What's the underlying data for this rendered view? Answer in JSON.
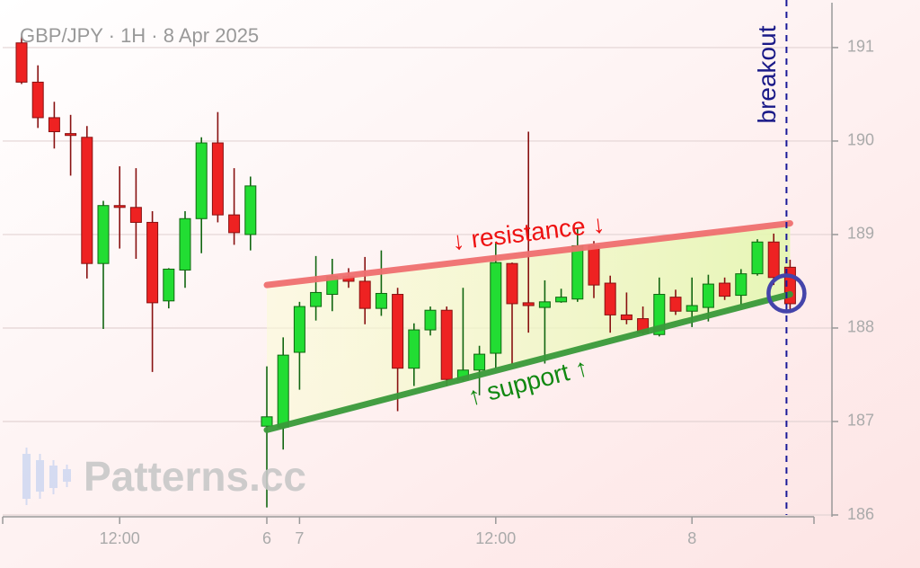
{
  "chart_data": {
    "type": "candlestick",
    "title": "GBP/JPY · 1H · 8 Apr 2025",
    "watermark": "Patterns.cc",
    "categories": [
      null,
      null,
      null,
      null,
      null,
      null,
      "12:00",
      null,
      null,
      null,
      null,
      null,
      null,
      null,
      null,
      "6",
      null,
      "7",
      null,
      null,
      null,
      null,
      null,
      null,
      null,
      null,
      null,
      null,
      null,
      "12:00",
      null,
      null,
      null,
      null,
      null,
      null,
      null,
      null,
      null,
      null,
      null,
      "8",
      null,
      null,
      null,
      null,
      null,
      null
    ],
    "open": [
      191.05,
      190.63,
      190.25,
      190.08,
      190.04,
      188.69,
      189.31,
      189.29,
      189.13,
      188.29,
      188.62,
      189.17,
      189.98,
      189.21,
      189.0,
      186.95,
      186.94,
      187.74,
      188.23,
      188.36,
      188.55,
      188.5,
      188.21,
      188.36,
      187.57,
      187.98,
      188.19,
      187.45,
      187.55,
      187.73,
      188.69,
      188.27,
      188.22,
      188.28,
      188.31,
      188.88,
      188.48,
      188.14,
      188.1,
      187.93,
      188.33,
      188.18,
      188.22,
      188.48,
      188.35,
      188.58,
      188.92,
      188.65
    ],
    "high": [
      191.12,
      190.81,
      190.42,
      190.28,
      190.16,
      189.36,
      189.73,
      189.71,
      189.25,
      188.64,
      189.25,
      190.04,
      190.31,
      189.71,
      189.62,
      187.59,
      187.9,
      188.28,
      188.77,
      188.74,
      188.64,
      188.76,
      188.83,
      188.43,
      188.05,
      188.23,
      188.23,
      188.43,
      187.81,
      188.91,
      188.7,
      190.1,
      188.51,
      188.42,
      189.06,
      188.93,
      188.56,
      188.38,
      188.23,
      188.54,
      188.41,
      188.54,
      188.57,
      188.54,
      188.63,
      188.95,
      189.01,
      188.73
    ],
    "low": [
      190.61,
      190.14,
      189.92,
      189.63,
      188.53,
      187.99,
      188.85,
      188.74,
      187.53,
      188.21,
      188.43,
      188.8,
      189.13,
      188.89,
      188.83,
      186.08,
      186.7,
      187.34,
      188.08,
      188.18,
      188.43,
      188.04,
      188.13,
      187.11,
      187.38,
      187.92,
      187.38,
      187.43,
      187.28,
      187.57,
      187.62,
      187.95,
      187.62,
      188.27,
      188.28,
      188.32,
      187.95,
      188.04,
      187.93,
      187.91,
      188.14,
      188.01,
      188.07,
      188.3,
      188.25,
      188.56,
      188.46,
      188.16
    ],
    "close": [
      190.63,
      190.25,
      190.1,
      190.06,
      188.69,
      189.31,
      189.29,
      189.13,
      188.27,
      188.63,
      189.17,
      189.98,
      189.21,
      189.02,
      189.52,
      187.05,
      187.71,
      188.23,
      188.38,
      188.55,
      188.5,
      188.21,
      188.37,
      187.57,
      187.98,
      188.19,
      187.45,
      187.55,
      187.72,
      188.7,
      188.26,
      188.24,
      188.28,
      188.33,
      188.88,
      188.46,
      188.14,
      188.09,
      187.95,
      188.36,
      188.18,
      188.24,
      188.47,
      188.34,
      188.58,
      188.92,
      188.54,
      188.26
    ],
    "up_color": "#22dd33",
    "down_color": "#ee2222",
    "ylim": [
      186,
      191.48
    ],
    "yticks": [
      186,
      187,
      188,
      189,
      190,
      191
    ],
    "grid": true,
    "lines": [
      {
        "label": "↓ resistance ↓",
        "color": "#f07070",
        "start": 15,
        "end": 47,
        "values": [
          188.46,
          189.12
        ]
      },
      {
        "label": "↑ support ↑",
        "color": "#3a9a3a",
        "start": 15,
        "end": 47,
        "values": [
          186.91,
          188.36
        ]
      }
    ],
    "breakout": {
      "label": "breakout",
      "index": 47,
      "value": 188.37
    }
  }
}
